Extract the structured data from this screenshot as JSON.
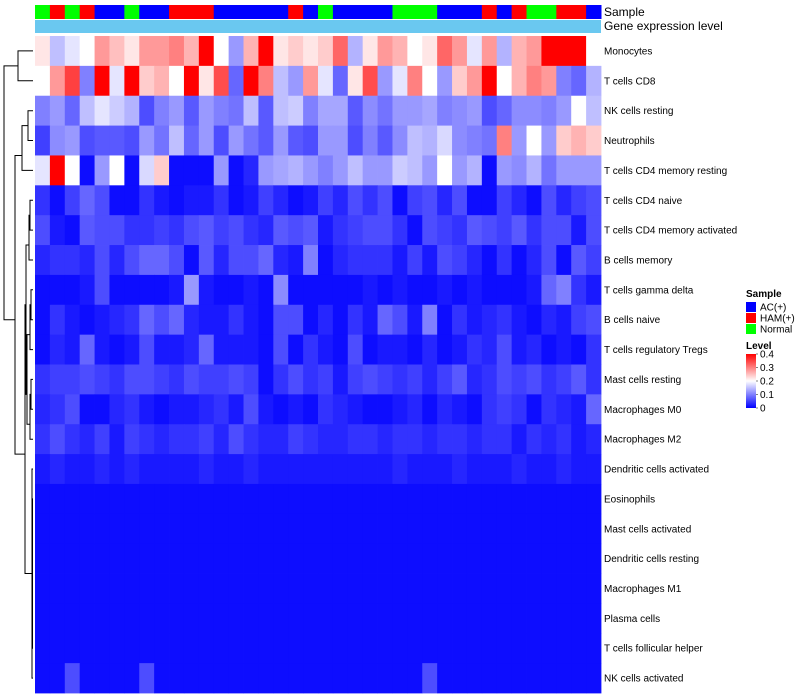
{
  "chart_data": {
    "type": "heatmap",
    "annotation_labels": [
      "Sample",
      "Gene expression level"
    ],
    "rows": [
      "Monocytes",
      "T cells CD8",
      "NK cells resting",
      "Neutrophils",
      "T cells CD4 memory resting",
      "T cells CD4 naive",
      "T cells CD4 memory activated",
      "B cells memory",
      "T cells gamma delta",
      "B cells naive",
      "T cells regulatory  Tregs",
      "Mast cells resting",
      "Macrophages M0",
      "Macrophages M2",
      "Dendritic cells activated",
      "Eosinophils",
      "Mast cells activated",
      "Dendritic cells resting",
      "Macrophages M1",
      "Plasma cells",
      "T cells follicular helper",
      "NK cells activated"
    ],
    "sample_groups": [
      "N",
      "H",
      "N",
      "H",
      "A",
      "A",
      "N",
      "A",
      "A",
      "H",
      "H",
      "H",
      "A",
      "A",
      "A",
      "A",
      "A",
      "H",
      "A",
      "N",
      "A",
      "A",
      "A",
      "A",
      "N",
      "N",
      "N",
      "A",
      "A",
      "A",
      "H",
      "A",
      "H",
      "N",
      "N",
      "H",
      "H",
      "A"
    ],
    "group_colors": {
      "A": "#0000ff",
      "H": "#ff0000",
      "N": "#00ff00"
    },
    "gene_expression_color": "#6ac8f0",
    "values": [
      [
        0.22,
        0.15,
        0.18,
        0.2,
        0.28,
        0.25,
        0.22,
        0.28,
        0.28,
        0.3,
        0.26,
        0.4,
        0.2,
        0.12,
        0.26,
        0.44,
        0.22,
        0.24,
        0.22,
        0.24,
        0.32,
        0.14,
        0.22,
        0.28,
        0.26,
        0.2,
        0.22,
        0.32,
        0.28,
        0.18,
        0.28,
        0.14,
        0.26,
        0.28,
        0.44,
        0.44,
        0.4,
        0.2
      ],
      [
        0.2,
        0.28,
        0.35,
        0.1,
        0.4,
        0.18,
        0.5,
        0.24,
        0.26,
        0.2,
        0.44,
        0.22,
        0.34,
        0.08,
        0.45,
        0.3,
        0.15,
        0.12,
        0.28,
        0.18,
        0.08,
        0.22,
        0.34,
        0.12,
        0.18,
        0.3,
        0.2,
        0.12,
        0.24,
        0.28,
        0.42,
        0.2,
        0.26,
        0.3,
        0.28,
        0.1,
        0.08,
        0.14
      ],
      [
        0.1,
        0.12,
        0.08,
        0.15,
        0.18,
        0.16,
        0.14,
        0.06,
        0.1,
        0.12,
        0.07,
        0.12,
        0.1,
        0.09,
        0.15,
        0.07,
        0.15,
        0.16,
        0.1,
        0.13,
        0.13,
        0.07,
        0.11,
        0.09,
        0.12,
        0.12,
        0.13,
        0.1,
        0.11,
        0.12,
        0.06,
        0.08,
        0.11,
        0.11,
        0.1,
        0.12,
        0.2,
        0.15
      ],
      [
        0.05,
        0.11,
        0.12,
        0.06,
        0.07,
        0.07,
        0.06,
        0.12,
        0.09,
        0.15,
        0.08,
        0.12,
        0.06,
        0.12,
        0.09,
        0.07,
        0.12,
        0.07,
        0.06,
        0.12,
        0.12,
        0.06,
        0.1,
        0.07,
        0.11,
        0.15,
        0.14,
        0.17,
        0.11,
        0.1,
        0.09,
        0.3,
        0.12,
        0.2,
        0.12,
        0.24,
        0.26,
        0.24
      ],
      [
        0.18,
        0.44,
        0.2,
        0.01,
        0.12,
        0.2,
        0.01,
        0.17,
        0.24,
        0.01,
        0.01,
        0.01,
        0.12,
        0.01,
        0.03,
        0.12,
        0.13,
        0.14,
        0.12,
        0.1,
        0.12,
        0.15,
        0.12,
        0.12,
        0.16,
        0.15,
        0.12,
        0.2,
        0.12,
        0.14,
        0.01,
        0.12,
        0.11,
        0.14,
        0.09,
        0.12,
        0.12,
        0.12
      ],
      [
        0.04,
        0.01,
        0.05,
        0.08,
        0.06,
        0.01,
        0.01,
        0.04,
        0.02,
        0.01,
        0.02,
        0.02,
        0.04,
        0.01,
        0.02,
        0.05,
        0.03,
        0.01,
        0.02,
        0.05,
        0.03,
        0.06,
        0.04,
        0.06,
        0.01,
        0.05,
        0.06,
        0.03,
        0.06,
        0.01,
        0.01,
        0.05,
        0.03,
        0.01,
        0.06,
        0.03,
        0.05,
        0.06
      ],
      [
        0.06,
        0.02,
        0.01,
        0.07,
        0.06,
        0.06,
        0.04,
        0.04,
        0.05,
        0.04,
        0.06,
        0.07,
        0.05,
        0.06,
        0.04,
        0.03,
        0.07,
        0.06,
        0.07,
        0.02,
        0.04,
        0.05,
        0.06,
        0.06,
        0.04,
        0.01,
        0.06,
        0.05,
        0.04,
        0.07,
        0.06,
        0.05,
        0.07,
        0.04,
        0.06,
        0.06,
        0.02,
        0.06
      ],
      [
        0.03,
        0.04,
        0.04,
        0.03,
        0.06,
        0.03,
        0.06,
        0.08,
        0.08,
        0.06,
        0.01,
        0.07,
        0.03,
        0.06,
        0.06,
        0.08,
        0.03,
        0.02,
        0.1,
        0.01,
        0.03,
        0.04,
        0.04,
        0.04,
        0.02,
        0.05,
        0.02,
        0.06,
        0.05,
        0.03,
        0.01,
        0.04,
        0.01,
        0.03,
        0.06,
        0.01,
        0.07,
        0.05
      ],
      [
        0.01,
        0.01,
        0.01,
        0.02,
        0.06,
        0.01,
        0.01,
        0.01,
        0.01,
        0.02,
        0.12,
        0.02,
        0.01,
        0.01,
        0.02,
        0.01,
        0.11,
        0.01,
        0.01,
        0.01,
        0.01,
        0.01,
        0.02,
        0.01,
        0.02,
        0.01,
        0.01,
        0.02,
        0.01,
        0.02,
        0.01,
        0.01,
        0.01,
        0.02,
        0.08,
        0.1,
        0.04,
        0.02
      ],
      [
        0.01,
        0.04,
        0.02,
        0.01,
        0.02,
        0.03,
        0.04,
        0.08,
        0.06,
        0.08,
        0.03,
        0.02,
        0.02,
        0.04,
        0.02,
        0.01,
        0.06,
        0.06,
        0.01,
        0.03,
        0.01,
        0.04,
        0.02,
        0.08,
        0.06,
        0.02,
        0.1,
        0.01,
        0.04,
        0.02,
        0.03,
        0.04,
        0.02,
        0.01,
        0.03,
        0.02,
        0.05,
        0.06
      ],
      [
        0.01,
        0.03,
        0.02,
        0.08,
        0.02,
        0.01,
        0.02,
        0.06,
        0.02,
        0.02,
        0.03,
        0.08,
        0.02,
        0.02,
        0.02,
        0.01,
        0.06,
        0.01,
        0.04,
        0.02,
        0.01,
        0.06,
        0.01,
        0.02,
        0.02,
        0.01,
        0.03,
        0.01,
        0.02,
        0.04,
        0.03,
        0.06,
        0.02,
        0.03,
        0.01,
        0.02,
        0.01,
        0.04
      ],
      [
        0.04,
        0.05,
        0.05,
        0.06,
        0.05,
        0.04,
        0.06,
        0.06,
        0.05,
        0.04,
        0.06,
        0.05,
        0.05,
        0.06,
        0.05,
        0.01,
        0.04,
        0.06,
        0.04,
        0.05,
        0.02,
        0.05,
        0.06,
        0.05,
        0.04,
        0.05,
        0.03,
        0.05,
        0.07,
        0.03,
        0.04,
        0.06,
        0.05,
        0.06,
        0.04,
        0.05,
        0.07,
        0.04
      ],
      [
        0.03,
        0.04,
        0.06,
        0.01,
        0.01,
        0.03,
        0.04,
        0.02,
        0.01,
        0.02,
        0.02,
        0.03,
        0.04,
        0.02,
        0.06,
        0.02,
        0.01,
        0.02,
        0.01,
        0.04,
        0.03,
        0.02,
        0.01,
        0.01,
        0.02,
        0.03,
        0.01,
        0.03,
        0.02,
        0.01,
        0.04,
        0.05,
        0.04,
        0.01,
        0.04,
        0.03,
        0.02,
        0.08
      ],
      [
        0.04,
        0.06,
        0.04,
        0.03,
        0.05,
        0.02,
        0.05,
        0.04,
        0.03,
        0.04,
        0.04,
        0.05,
        0.03,
        0.06,
        0.04,
        0.03,
        0.03,
        0.05,
        0.04,
        0.03,
        0.03,
        0.04,
        0.04,
        0.03,
        0.04,
        0.04,
        0.03,
        0.04,
        0.04,
        0.03,
        0.04,
        0.04,
        0.02,
        0.04,
        0.03,
        0.04,
        0.02,
        0.03
      ],
      [
        0.02,
        0.03,
        0.02,
        0.02,
        0.03,
        0.02,
        0.03,
        0.02,
        0.02,
        0.02,
        0.02,
        0.03,
        0.02,
        0.02,
        0.03,
        0.02,
        0.02,
        0.02,
        0.02,
        0.02,
        0.02,
        0.02,
        0.02,
        0.02,
        0.03,
        0.02,
        0.02,
        0.02,
        0.03,
        0.02,
        0.02,
        0.02,
        0.03,
        0.02,
        0.02,
        0.03,
        0.02,
        0.02
      ],
      [
        0.01,
        0.01,
        0.01,
        0.01,
        0.01,
        0.01,
        0.01,
        0.01,
        0.01,
        0.01,
        0.01,
        0.01,
        0.01,
        0.01,
        0.01,
        0.01,
        0.01,
        0.01,
        0.01,
        0.01,
        0.01,
        0.01,
        0.01,
        0.01,
        0.01,
        0.01,
        0.01,
        0.01,
        0.01,
        0.01,
        0.01,
        0.01,
        0.01,
        0.01,
        0.01,
        0.01,
        0.01,
        0.01
      ],
      [
        0.01,
        0.01,
        0.01,
        0.01,
        0.01,
        0.01,
        0.01,
        0.01,
        0.01,
        0.01,
        0.01,
        0.01,
        0.01,
        0.01,
        0.01,
        0.01,
        0.01,
        0.01,
        0.01,
        0.01,
        0.01,
        0.01,
        0.01,
        0.01,
        0.01,
        0.01,
        0.01,
        0.01,
        0.01,
        0.01,
        0.01,
        0.01,
        0.01,
        0.01,
        0.01,
        0.01,
        0.01,
        0.01
      ],
      [
        0.01,
        0.01,
        0.01,
        0.01,
        0.01,
        0.01,
        0.01,
        0.01,
        0.01,
        0.01,
        0.01,
        0.01,
        0.01,
        0.01,
        0.01,
        0.01,
        0.01,
        0.01,
        0.01,
        0.01,
        0.01,
        0.01,
        0.01,
        0.01,
        0.01,
        0.01,
        0.01,
        0.01,
        0.01,
        0.01,
        0.01,
        0.01,
        0.01,
        0.01,
        0.01,
        0.01,
        0.01,
        0.01
      ],
      [
        0.01,
        0.01,
        0.01,
        0.01,
        0.01,
        0.01,
        0.01,
        0.01,
        0.01,
        0.01,
        0.01,
        0.01,
        0.01,
        0.01,
        0.01,
        0.01,
        0.01,
        0.01,
        0.01,
        0.01,
        0.01,
        0.01,
        0.01,
        0.01,
        0.01,
        0.01,
        0.01,
        0.01,
        0.01,
        0.01,
        0.01,
        0.01,
        0.01,
        0.01,
        0.01,
        0.01,
        0.01,
        0.01
      ],
      [
        0.01,
        0.01,
        0.01,
        0.01,
        0.01,
        0.01,
        0.01,
        0.01,
        0.01,
        0.01,
        0.01,
        0.01,
        0.01,
        0.01,
        0.01,
        0.01,
        0.01,
        0.01,
        0.01,
        0.01,
        0.01,
        0.01,
        0.01,
        0.01,
        0.01,
        0.01,
        0.01,
        0.01,
        0.01,
        0.01,
        0.01,
        0.01,
        0.01,
        0.01,
        0.01,
        0.01,
        0.01,
        0.01
      ],
      [
        0.01,
        0.01,
        0.01,
        0.01,
        0.01,
        0.01,
        0.01,
        0.01,
        0.01,
        0.01,
        0.01,
        0.01,
        0.01,
        0.01,
        0.01,
        0.01,
        0.01,
        0.01,
        0.01,
        0.01,
        0.01,
        0.01,
        0.01,
        0.01,
        0.01,
        0.01,
        0.01,
        0.01,
        0.01,
        0.01,
        0.01,
        0.01,
        0.01,
        0.01,
        0.01,
        0.01,
        0.01,
        0.01
      ],
      [
        0.01,
        0.01,
        0.06,
        0.01,
        0.01,
        0.01,
        0.01,
        0.06,
        0.01,
        0.01,
        0.01,
        0.01,
        0.01,
        0.01,
        0.01,
        0.01,
        0.01,
        0.01,
        0.01,
        0.01,
        0.01,
        0.01,
        0.01,
        0.01,
        0.01,
        0.01,
        0.06,
        0.01,
        0.01,
        0.01,
        0.01,
        0.01,
        0.01,
        0.01,
        0.01,
        0.01,
        0.01,
        0.01
      ]
    ],
    "legend": {
      "sample_title": "Sample",
      "sample_entries": [
        {
          "label": "AC(+)",
          "color": "#0000ff"
        },
        {
          "label": "HAM(+)",
          "color": "#ff0000"
        },
        {
          "label": "Normal",
          "color": "#00ff00"
        }
      ],
      "level_title": "Level",
      "level_ticks": [
        "0.4",
        "0.3",
        "0.2",
        "0.1",
        "0"
      ],
      "level_tick_values": [
        0.4,
        0.3,
        0.2,
        0.1,
        0
      ],
      "level_range": [
        0,
        0.4
      ],
      "color_low": "#0000ff",
      "color_mid": "#ffffff",
      "color_high": "#ff0000"
    }
  }
}
